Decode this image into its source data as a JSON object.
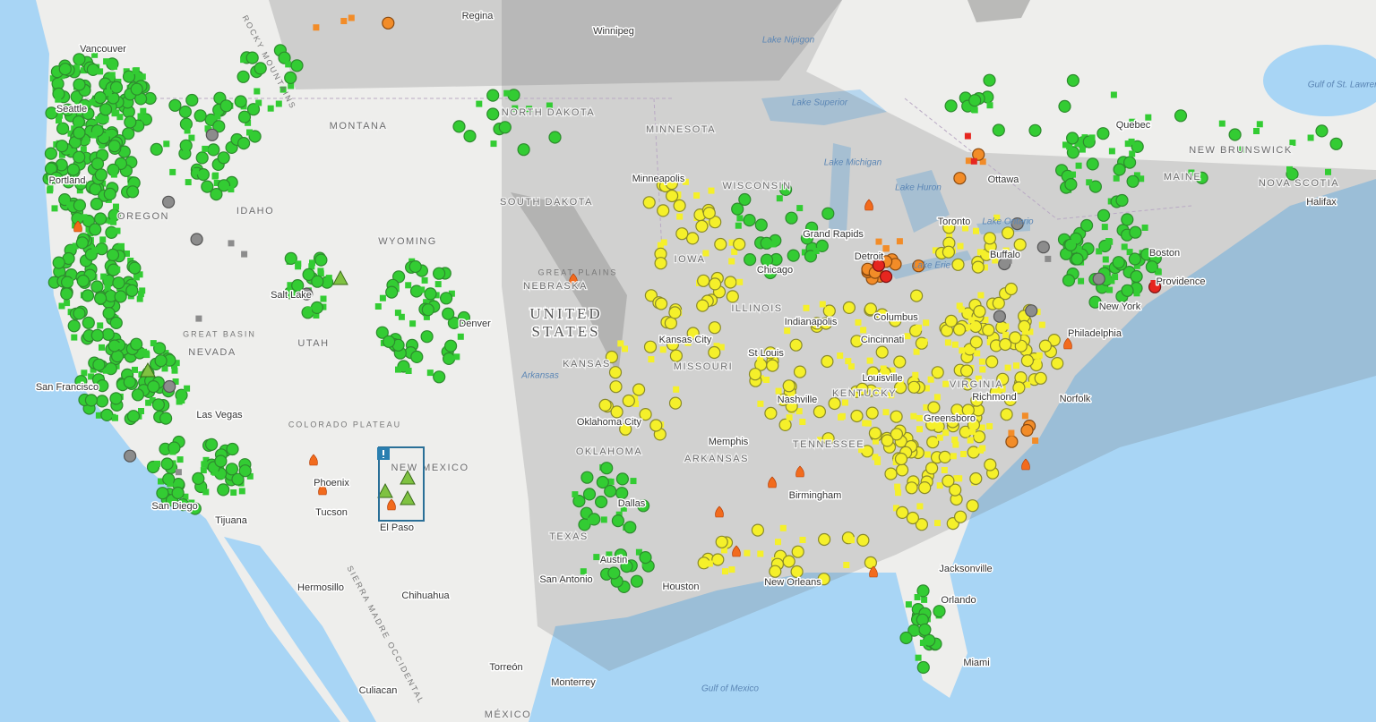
{
  "labels": [
    "Regina",
    "Winnipeg",
    "Lake Nipigon",
    "Lake Superior",
    "NORTH DAKOTA",
    "MINNESOTA",
    "MONTANA",
    "Seattle",
    "Portland",
    "OREGON",
    "IDAHO",
    "WYOMING",
    "SOUTH DAKOTA",
    "Minneapolis",
    "WISCONSIN",
    "Lake Michigan",
    "Lake Huron",
    "Ottawa",
    "Quebec",
    "MAINE",
    "NEW BRUNSWICK",
    "NOVA SCOTIA",
    "Halifax",
    "Gulf of St. Lawrence",
    "Toronto",
    "Lake Ontario",
    "Buffalo",
    "Boston",
    "Providence",
    "New York",
    "Philadelphia",
    "Richmond",
    "Norfolk",
    "GREAT PLAINS",
    "NEBRASKA",
    "UNITED",
    "STATES",
    "IOWA",
    "Grand Rapids",
    "Detroit",
    "Lake Erie",
    "Chicago",
    "ILLINOIS",
    "Indianapolis",
    "Columbus",
    "Cincinnati",
    "Kansas City",
    "St Louis",
    "MISSOURI",
    "KANSAS",
    "Arkansas",
    "Louisville",
    "KENTUCKY",
    "VIRGINIA",
    "Nashville",
    "Greensboro",
    "Memphis",
    "TENNESSEE",
    "ARKANSAS",
    "OKLAHOMA",
    "Oklahoma City",
    "TEXAS",
    "Dallas",
    "Austin",
    "San Antonio",
    "Houston",
    "New Orleans",
    "Birmingham",
    "Jacksonville",
    "Orlando",
    "Miami",
    "Gulf of Mexico",
    "Monterrey",
    "Torreón",
    "Chihuahua",
    "Hermosillo",
    "Culiacan",
    "MÉXICO",
    "El Paso",
    "NEW MEXICO",
    "Phoenix",
    "Tucson",
    "San Diego",
    "Tijuana",
    "Las Vegas",
    "San Francisco",
    "NEVADA",
    "GREAT BASIN",
    "UTAH",
    "Salt Lake",
    "COLORADO PLATEAU",
    "Denver",
    "Vancouver",
    "ROCKY MOUNTAINS",
    "SIERRA MADRE OCCIDENTAL"
  ]
}
